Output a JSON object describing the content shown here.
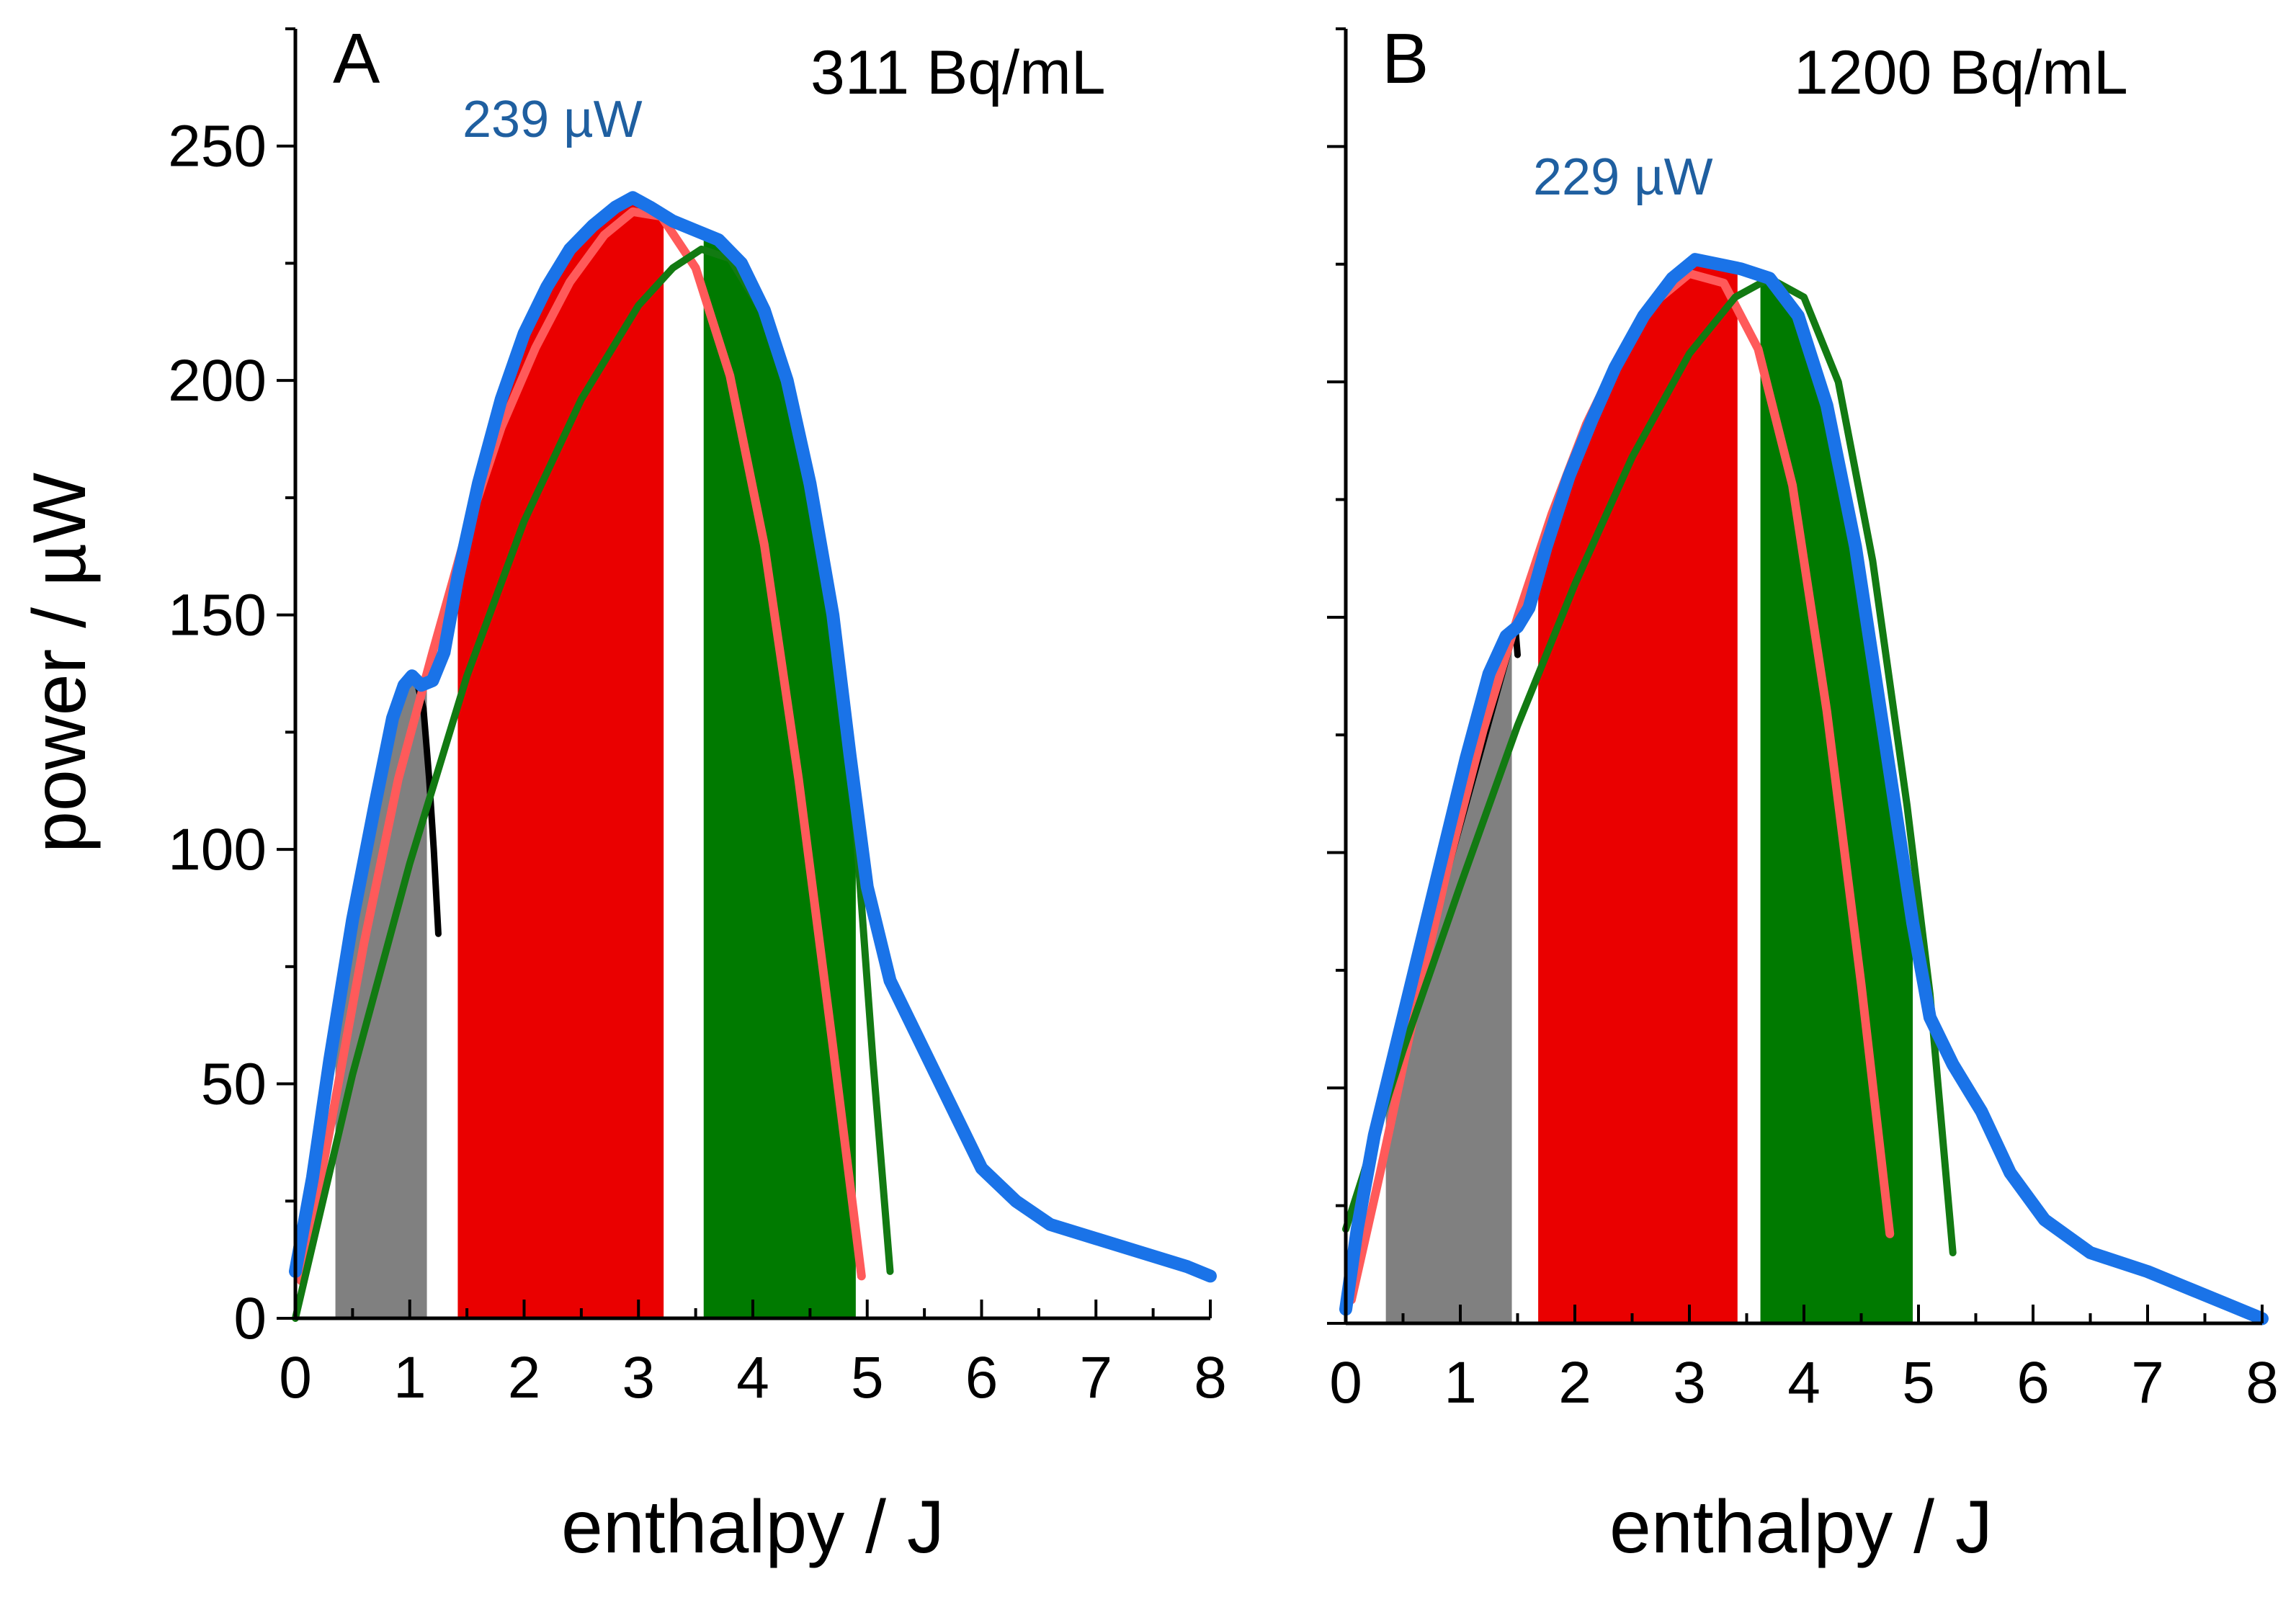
{
  "figure": {
    "ylabel": "power / µW",
    "colors": {
      "measured": "#1a73e8",
      "fit_early": "#ff5a5a",
      "fit_late": "#127a12",
      "initial": "#000000",
      "area_grey": "#808080",
      "area_red": "#ea0000",
      "area_green": "#007a00"
    }
  },
  "chart_data": [
    {
      "type": "area",
      "panel": "A",
      "concentration": "311 Bq/mL",
      "peak_label": "239 µW",
      "xlabel": "enthalpy / J",
      "ylabel": "power / µW",
      "xlim": [
        0,
        8
      ],
      "ylim": [
        0,
        275
      ],
      "x_ticks": [
        0,
        1,
        2,
        3,
        4,
        5,
        6,
        7,
        8
      ],
      "y_ticks": [
        0,
        50,
        100,
        150,
        200,
        250
      ],
      "shaded_regions": [
        {
          "name": "grey",
          "x_range": [
            0.35,
            1.15
          ]
        },
        {
          "name": "red",
          "x_range": [
            1.42,
            3.22
          ]
        },
        {
          "name": "green",
          "x_range": [
            3.57,
            4.9
          ]
        }
      ],
      "series": [
        {
          "name": "measured",
          "x": [
            0,
            0.15,
            0.3,
            0.5,
            0.7,
            0.85,
            0.95,
            1.02,
            1.1,
            1.2,
            1.3,
            1.42,
            1.6,
            1.8,
            2.0,
            2.2,
            2.4,
            2.6,
            2.8,
            2.95,
            3.1,
            3.3,
            3.5,
            3.7,
            3.9,
            4.1,
            4.3,
            4.5,
            4.7,
            4.85,
            5.0,
            5.2,
            5.4,
            5.6,
            5.8,
            6.0,
            6.3,
            6.6,
            7.0,
            7.4,
            7.8,
            8.0
          ],
          "y": [
            10,
            30,
            55,
            85,
            110,
            128,
            135,
            137,
            135,
            136,
            142,
            158,
            178,
            196,
            210,
            220,
            228,
            233,
            237,
            239,
            237,
            234,
            232,
            230,
            225,
            215,
            200,
            178,
            150,
            120,
            92,
            72,
            62,
            52,
            42,
            32,
            25,
            20,
            17,
            14,
            11,
            9
          ]
        },
        {
          "name": "fit_early",
          "x": [
            0.05,
            0.3,
            0.6,
            0.9,
            1.2,
            1.5,
            1.8,
            2.1,
            2.4,
            2.7,
            2.95,
            3.2,
            3.5,
            3.8,
            4.1,
            4.4,
            4.7,
            4.95
          ],
          "y": [
            8,
            40,
            80,
            115,
            142,
            168,
            190,
            207,
            221,
            231,
            236,
            235,
            224,
            201,
            165,
            115,
            58,
            9
          ]
        },
        {
          "name": "fit_late",
          "x": [
            0,
            0.5,
            1.0,
            1.5,
            2.0,
            2.5,
            3.0,
            3.3,
            3.55,
            3.8,
            4.1,
            4.4,
            4.7,
            4.9,
            5.05,
            5.2
          ],
          "y": [
            0,
            52,
            97,
            137,
            170,
            196,
            216,
            224,
            228,
            226,
            214,
            190,
            152,
            105,
            55,
            10
          ]
        },
        {
          "name": "initial",
          "x": [
            1.05,
            1.12,
            1.17,
            1.21,
            1.25
          ],
          "y": [
            137,
            130,
            115,
            100,
            82
          ]
        }
      ]
    },
    {
      "type": "area",
      "panel": "B",
      "concentration": "1200 Bq/mL",
      "peak_label": "229 µW",
      "xlabel": "enthalpy / J",
      "ylabel": "power / µW",
      "xlim": [
        0,
        8
      ],
      "ylim": [
        0,
        275
      ],
      "x_ticks": [
        0,
        1,
        2,
        3,
        4,
        5,
        6,
        7,
        8
      ],
      "y_ticks": [
        0,
        50,
        100,
        150,
        200,
        250
      ],
      "shaded_regions": [
        {
          "name": "grey",
          "x_range": [
            0.35,
            1.45
          ]
        },
        {
          "name": "red",
          "x_range": [
            1.68,
            3.42
          ]
        },
        {
          "name": "green",
          "x_range": [
            3.62,
            4.95
          ]
        }
      ],
      "series": [
        {
          "name": "measured",
          "x": [
            0,
            0.1,
            0.25,
            0.45,
            0.65,
            0.85,
            1.05,
            1.25,
            1.4,
            1.5,
            1.6,
            1.75,
            1.95,
            2.15,
            2.35,
            2.6,
            2.85,
            3.05,
            3.25,
            3.45,
            3.7,
            3.95,
            4.2,
            4.45,
            4.7,
            4.95,
            5.1,
            5.3,
            5.55,
            5.8,
            6.1,
            6.5,
            7.0,
            7.4,
            7.7,
            7.9,
            8.0
          ],
          "y": [
            3,
            20,
            40,
            60,
            80,
            100,
            120,
            138,
            146,
            148,
            152,
            165,
            180,
            192,
            203,
            214,
            222,
            226,
            225,
            224,
            222,
            214,
            195,
            165,
            125,
            85,
            65,
            55,
            45,
            32,
            22,
            15,
            11,
            7,
            4,
            2,
            1
          ]
        },
        {
          "name": "fit_early",
          "x": [
            0.05,
            0.3,
            0.6,
            0.9,
            1.2,
            1.5,
            1.8,
            2.1,
            2.4,
            2.7,
            3.0,
            3.3,
            3.6,
            3.9,
            4.2,
            4.5,
            4.75
          ],
          "y": [
            5,
            32,
            66,
            98,
            126,
            150,
            172,
            191,
            206,
            217,
            223,
            221,
            207,
            178,
            130,
            72,
            19
          ]
        },
        {
          "name": "fit_late",
          "x": [
            0,
            0.5,
            1.0,
            1.5,
            2.0,
            2.5,
            3.0,
            3.4,
            3.7,
            4.0,
            4.3,
            4.6,
            4.9,
            5.1,
            5.3
          ],
          "y": [
            20,
            58,
            93,
            127,
            157,
            184,
            206,
            218,
            222,
            218,
            200,
            162,
            110,
            70,
            15
          ]
        },
        {
          "name": "initial",
          "x": [
            0.05,
            0.08,
            0.11,
            1.48,
            1.5
          ],
          "y": [
            12,
            20,
            28,
            148,
            142
          ]
        }
      ]
    }
  ]
}
